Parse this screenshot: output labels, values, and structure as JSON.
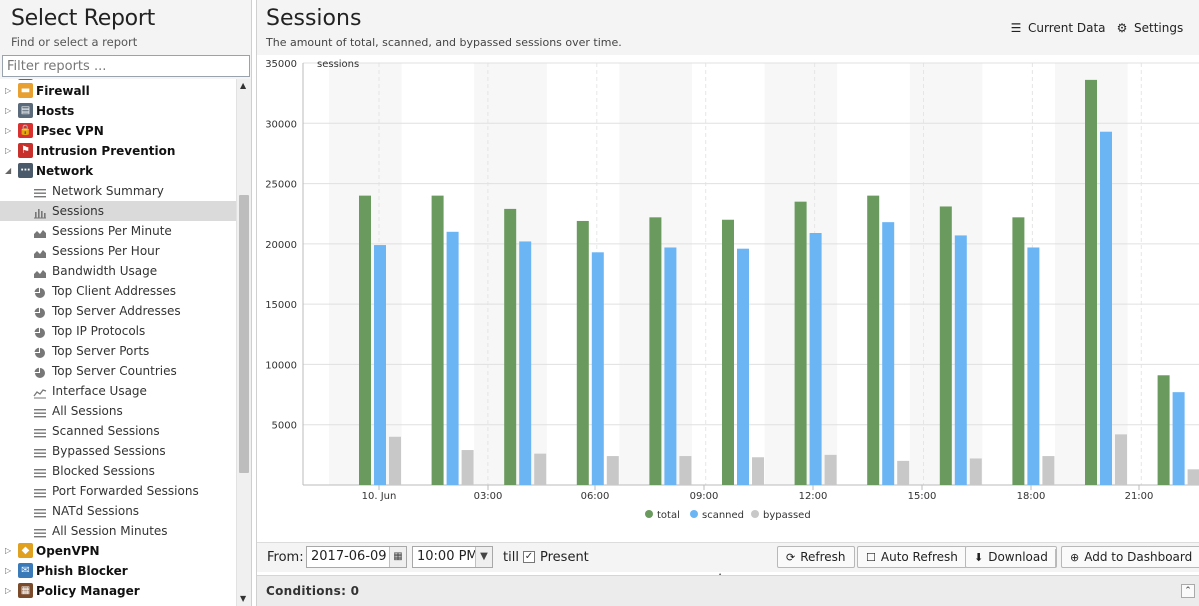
{
  "left_panel": {
    "title": "Select Report",
    "subtitle": "Find or select a report",
    "filter_placeholder": "Filter reports ...",
    "categories_top": [
      {
        "label": "Firewall",
        "icon": "firewall-icon",
        "color": "#e8a030"
      },
      {
        "label": "Hosts",
        "icon": "hosts-icon",
        "color": "#5a6a7a"
      },
      {
        "label": "IPsec VPN",
        "icon": "lock-icon",
        "color": "#d93030"
      },
      {
        "label": "Intrusion Prevention",
        "icon": "intrusion-icon",
        "color": "#c8302c"
      },
      {
        "label": "Network",
        "icon": "network-icon",
        "color": "#4a5a6a"
      }
    ],
    "network_items": [
      {
        "label": "Network Summary",
        "icon": "list-icon"
      },
      {
        "label": "Sessions",
        "icon": "bar-chart-icon",
        "selected": true
      },
      {
        "label": "Sessions Per Minute",
        "icon": "area-chart-icon"
      },
      {
        "label": "Sessions Per Hour",
        "icon": "area-chart-icon"
      },
      {
        "label": "Bandwidth Usage",
        "icon": "area-chart-icon"
      },
      {
        "label": "Top Client Addresses",
        "icon": "pie-chart-icon"
      },
      {
        "label": "Top Server Addresses",
        "icon": "pie-chart-icon"
      },
      {
        "label": "Top IP Protocols",
        "icon": "pie-chart-icon"
      },
      {
        "label": "Top Server Ports",
        "icon": "pie-chart-icon"
      },
      {
        "label": "Top Server Countries",
        "icon": "pie-chart-icon"
      },
      {
        "label": "Interface Usage",
        "icon": "line-chart-icon"
      },
      {
        "label": "All Sessions",
        "icon": "list-icon"
      },
      {
        "label": "Scanned Sessions",
        "icon": "list-icon"
      },
      {
        "label": "Bypassed Sessions",
        "icon": "list-icon"
      },
      {
        "label": "Blocked Sessions",
        "icon": "list-icon"
      },
      {
        "label": "Port Forwarded Sessions",
        "icon": "list-icon"
      },
      {
        "label": "NATd Sessions",
        "icon": "list-icon"
      },
      {
        "label": "All Session Minutes",
        "icon": "list-icon"
      }
    ],
    "categories_bottom": [
      {
        "label": "OpenVPN",
        "icon": "openvpn-icon",
        "color": "#e0a020"
      },
      {
        "label": "Phish Blocker",
        "icon": "phish-icon",
        "color": "#3a7ab8"
      },
      {
        "label": "Policy Manager",
        "icon": "policy-icon",
        "color": "#7a4a2a"
      }
    ]
  },
  "report": {
    "title": "Sessions",
    "subtitle": "The amount of total, scanned, and bypassed sessions over time.",
    "current_data_label": "Current Data",
    "settings_label": "Settings"
  },
  "toolbar": {
    "from_label": "From:",
    "date_value": "2017-06-09",
    "time_value": "10:00 PM",
    "till_label": "till",
    "present_label": "Present",
    "present_checked": true,
    "refresh_label": "Refresh",
    "auto_refresh_label": "Auto Refresh",
    "download_label": "Download",
    "add_dashboard_label": "Add to Dashboard"
  },
  "conditions": {
    "label": "Conditions: 0"
  },
  "chart_data": {
    "type": "bar",
    "ylabel": "sessions",
    "ylim": [
      0,
      35000
    ],
    "yticks": [
      5000,
      10000,
      15000,
      20000,
      25000,
      30000,
      35000
    ],
    "x_tick_labels": [
      "10. Jun",
      "03:00",
      "06:00",
      "09:00",
      "12:00",
      "15:00",
      "18:00",
      "21:00"
    ],
    "legend_position": "bottom-center",
    "grid": true,
    "series": [
      {
        "name": "total",
        "color": "#6a9a5e",
        "values": [
          24000,
          24000,
          22900,
          21900,
          22200,
          22000,
          23500,
          24000,
          23100,
          22200,
          33600,
          9100
        ]
      },
      {
        "name": "scanned",
        "color": "#6cb5f5",
        "values": [
          19900,
          21000,
          20200,
          19300,
          19700,
          19600,
          20900,
          21800,
          20700,
          19700,
          29300,
          7700
        ]
      },
      {
        "name": "bypassed",
        "color": "#c8c8c8",
        "values": [
          4000,
          2900,
          2600,
          2400,
          2400,
          2300,
          2500,
          2000,
          2200,
          2400,
          4200,
          1300
        ]
      }
    ]
  }
}
